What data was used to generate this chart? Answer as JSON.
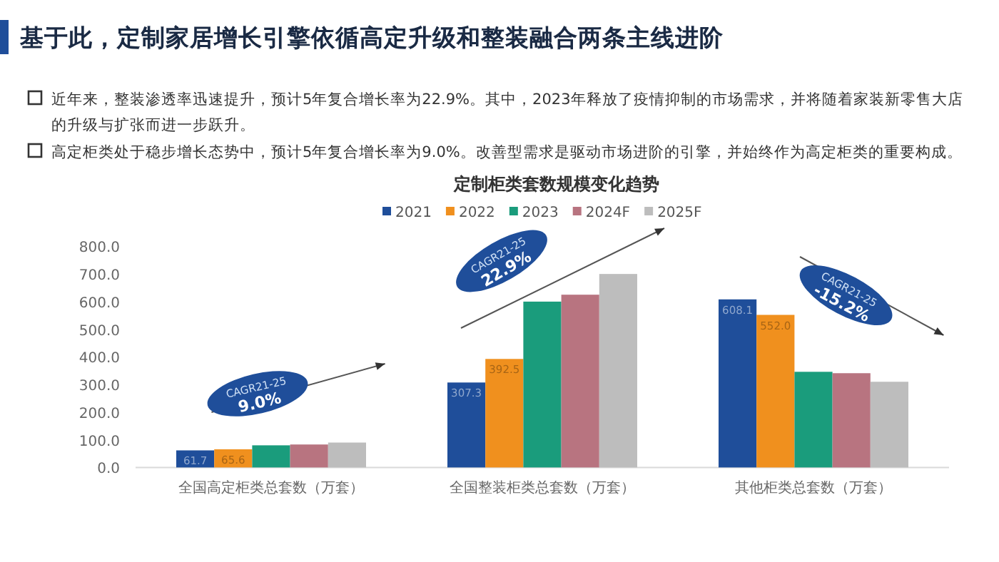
{
  "chart_data": {
    "type": "bar",
    "title": "基于此，定制家居增长引擎依循高定升级和整装融合两条主线进阶",
    "subtitle": "定制柜类套数规模变化趋势",
    "annotations": [
      "近年来，整装渗透率迅速提升，预计5年复合增长率为22.9%。其中，2023年释放了疫情抑制的市场需求，并将随着家装新零售大店的升级与扩张而进一步跃升。",
      "高定柜类处于稳步增长态势中，预计5年复合增长率为9.0%。改善型需求是驱动市场进阶的引擎，并始终作为高定柜类的重要构成。",
      "CAGR21-25",
      "9.0%",
      "CAGR21-25",
      "22.9%",
      "CAGR21-25",
      "-15.2%"
    ],
    "categories": [
      "全国高定柜类总套数（万套）",
      "全国整装柜类总套数（万套）",
      "其他柜类总套数（万套）"
    ],
    "series": [
      {
        "name": "2021",
        "color": "#1f4e9a",
        "values": [
          61.7,
          307.3,
          608.1
        ],
        "value_labels": [
          "61.7",
          "307.3",
          "608.1"
        ]
      },
      {
        "name": "2022",
        "color": "#f0901e",
        "values": [
          65.6,
          392.5,
          552.0
        ],
        "value_labels": [
          "65.6",
          "392.5",
          "552.0"
        ]
      },
      {
        "name": "2023",
        "color": "#1a9c7c",
        "values": [
          80,
          600,
          346
        ]
      },
      {
        "name": "2024F",
        "color": "#b87480",
        "values": [
          83,
          625,
          341
        ]
      },
      {
        "name": "2025F",
        "color": "#bdbdbd",
        "values": [
          90,
          700,
          310
        ]
      }
    ],
    "ylim": [
      0,
      800
    ],
    "yticks": [
      {
        "value": 0,
        "label": "0.0"
      },
      {
        "value": 100,
        "label": "100.0"
      },
      {
        "value": 200,
        "label": "200.0"
      },
      {
        "value": 300,
        "label": "300.0"
      },
      {
        "value": 400,
        "label": "400.0"
      },
      {
        "value": 500,
        "label": "500.0"
      },
      {
        "value": 600,
        "label": "600.0"
      },
      {
        "value": 700,
        "label": "700.0"
      },
      {
        "value": 800,
        "label": "800.0"
      }
    ],
    "legend": "top"
  }
}
